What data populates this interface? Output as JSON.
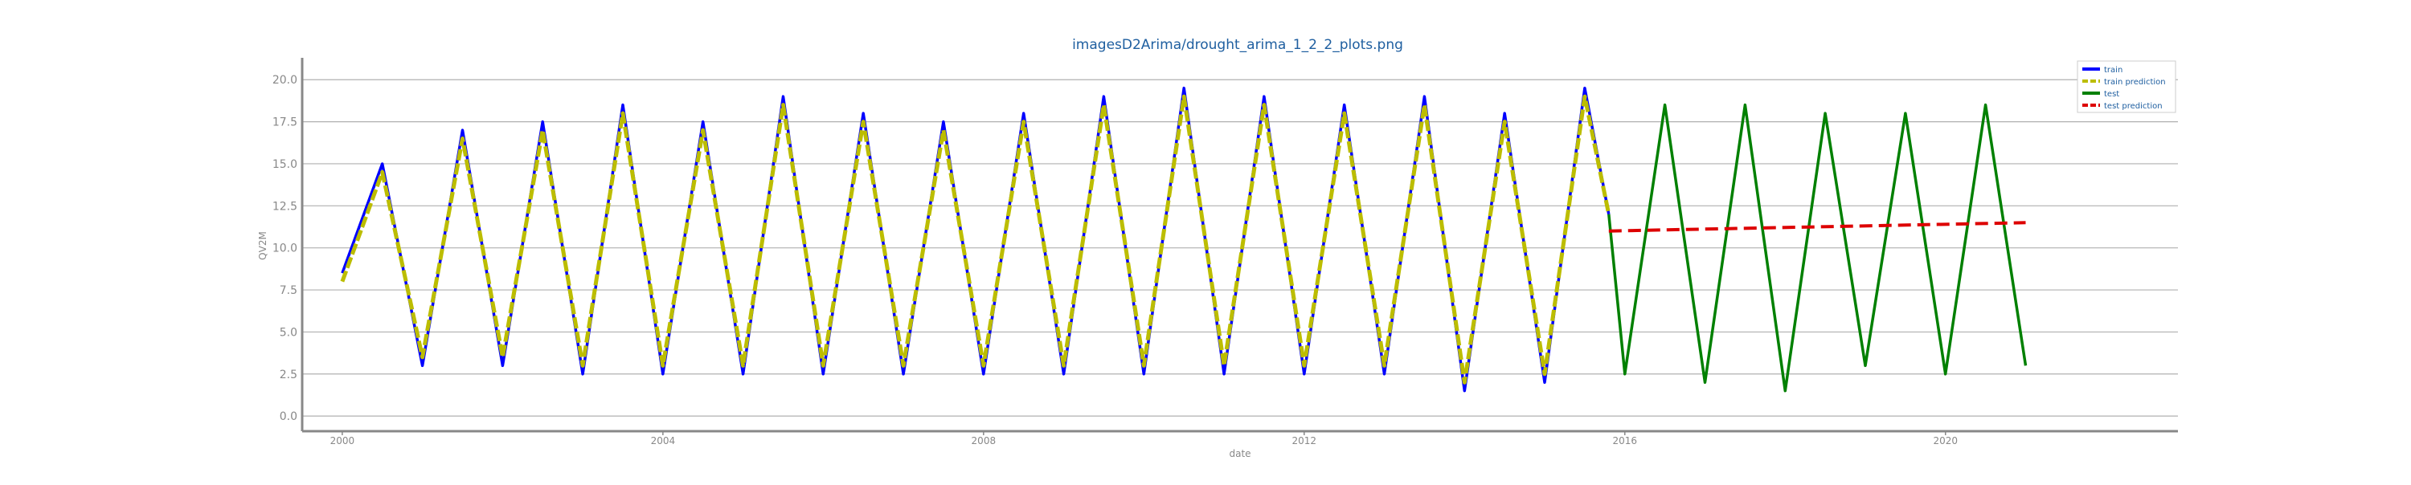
{
  "chart_data": {
    "type": "line",
    "title": "imagesD2Arima/drought_arima_1_2_2_plots.png",
    "xlabel": "date",
    "ylabel": "QV2M",
    "xlim": [
      1999.5,
      2022.9
    ],
    "ylim": [
      -0.9,
      21.3
    ],
    "x_ticks": [
      "2000",
      "2004",
      "2008",
      "2012",
      "2016",
      "2020"
    ],
    "y_ticks": [
      "0.0",
      "2.5",
      "5.0",
      "7.5",
      "10.0",
      "12.5",
      "15.0",
      "17.5",
      "20.0"
    ],
    "grid": "horizontal",
    "legend_position": "top-right",
    "colors": {
      "train": "#0000ff",
      "train_prediction": "#bcbd00",
      "test": "#008000",
      "test_prediction": "#dd0000",
      "title": "#1f5fa0",
      "grid": "#b0b0b0",
      "axis_text": "#888888"
    },
    "series": [
      {
        "name": "train",
        "style": "solid",
        "x": [
          2000.0,
          2000.5,
          2001.0,
          2001.5,
          2002.0,
          2002.5,
          2003.0,
          2003.5,
          2004.0,
          2004.5,
          2005.0,
          2005.5,
          2006.0,
          2006.5,
          2007.0,
          2007.5,
          2008.0,
          2008.5,
          2009.0,
          2009.5,
          2010.0,
          2010.5,
          2011.0,
          2011.5,
          2012.0,
          2012.5,
          2013.0,
          2013.5,
          2014.0,
          2014.5,
          2015.0,
          2015.5,
          2015.8
        ],
        "y": [
          8.5,
          15.0,
          3.0,
          17.0,
          3.0,
          17.5,
          2.5,
          18.5,
          2.5,
          17.5,
          2.5,
          19.0,
          2.5,
          18.0,
          2.5,
          17.5,
          2.5,
          18.0,
          2.5,
          19.0,
          2.5,
          19.5,
          2.5,
          19.0,
          2.5,
          18.5,
          2.5,
          19.0,
          1.5,
          18.0,
          2.0,
          19.5,
          12.0
        ]
      },
      {
        "name": "train prediction",
        "style": "dashed",
        "x": [
          2000.0,
          2000.5,
          2001.0,
          2001.5,
          2002.0,
          2002.5,
          2003.0,
          2003.5,
          2004.0,
          2004.5,
          2005.0,
          2005.5,
          2006.0,
          2006.5,
          2007.0,
          2007.5,
          2008.0,
          2008.5,
          2009.0,
          2009.5,
          2010.0,
          2010.5,
          2011.0,
          2011.5,
          2012.0,
          2012.5,
          2013.0,
          2013.5,
          2014.0,
          2014.5,
          2015.0,
          2015.5,
          2015.8
        ],
        "y": [
          8.0,
          14.5,
          3.5,
          16.5,
          3.5,
          17.0,
          3.0,
          18.0,
          3.0,
          17.0,
          3.0,
          18.5,
          3.0,
          17.5,
          3.0,
          17.0,
          3.0,
          17.5,
          3.0,
          18.5,
          3.0,
          19.0,
          3.0,
          18.5,
          3.0,
          18.0,
          3.0,
          18.5,
          2.0,
          17.5,
          2.5,
          19.0,
          12.0
        ]
      },
      {
        "name": "test",
        "style": "solid",
        "x": [
          2015.8,
          2016.0,
          2016.5,
          2017.0,
          2017.5,
          2018.0,
          2018.5,
          2019.0,
          2019.5,
          2020.0,
          2020.5,
          2021.0
        ],
        "y": [
          12.0,
          2.5,
          18.5,
          2.0,
          18.5,
          1.5,
          18.0,
          3.0,
          18.0,
          2.5,
          18.5,
          3.0
        ]
      },
      {
        "name": "test prediction",
        "style": "dashed",
        "x": [
          2015.8,
          2021.0
        ],
        "y": [
          11.0,
          11.5
        ]
      }
    ]
  }
}
